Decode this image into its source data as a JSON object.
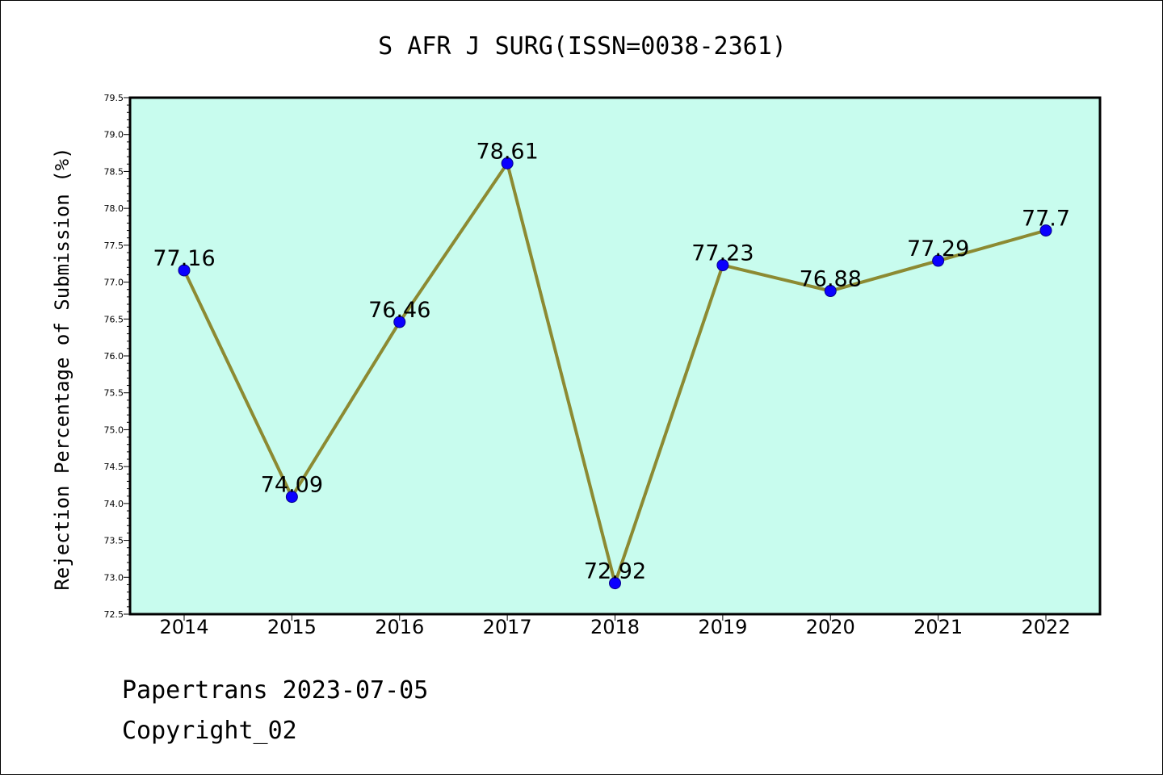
{
  "colors": {
    "plot_background": "#c8fcee",
    "line": "#8c8a32",
    "marker_fill": "#0b00ff",
    "marker_stroke": "#06008a",
    "axis": "#000000",
    "page_background": "#ffffff"
  },
  "chart_data": {
    "type": "line",
    "title": "S AFR J SURG(ISSN=0038-2361)",
    "xlabel": "",
    "ylabel": "Rejection Percentage of Submission (%)",
    "categories": [
      "2014",
      "2015",
      "2016",
      "2017",
      "2018",
      "2019",
      "2020",
      "2021",
      "2022"
    ],
    "values": [
      77.16,
      74.09,
      76.46,
      78.61,
      72.92,
      77.23,
      76.88,
      77.29,
      77.7
    ],
    "data_labels": [
      "77.16",
      "74.09",
      "76.46",
      "78.61",
      "72.92",
      "77.23",
      "76.88",
      "77.29",
      "77.7"
    ],
    "ylim": [
      72.5,
      79.5
    ],
    "yticks": [
      72.5,
      73.0,
      73.5,
      74.0,
      74.5,
      75.0,
      75.5,
      76.0,
      76.5,
      77.0,
      77.5,
      78.0,
      78.5,
      79.0,
      79.5
    ],
    "ytick_labels": [
      "72.5",
      "73.0",
      "73.5",
      "74.0",
      "74.5",
      "75.0",
      "75.5",
      "76.0",
      "76.5",
      "77.0",
      "77.5",
      "78.0",
      "78.5",
      "79.0",
      "79.5"
    ],
    "grid": false,
    "legend": "none"
  },
  "footer": {
    "line1": "Papertrans 2023-07-05",
    "line2": "Copyright_02"
  }
}
